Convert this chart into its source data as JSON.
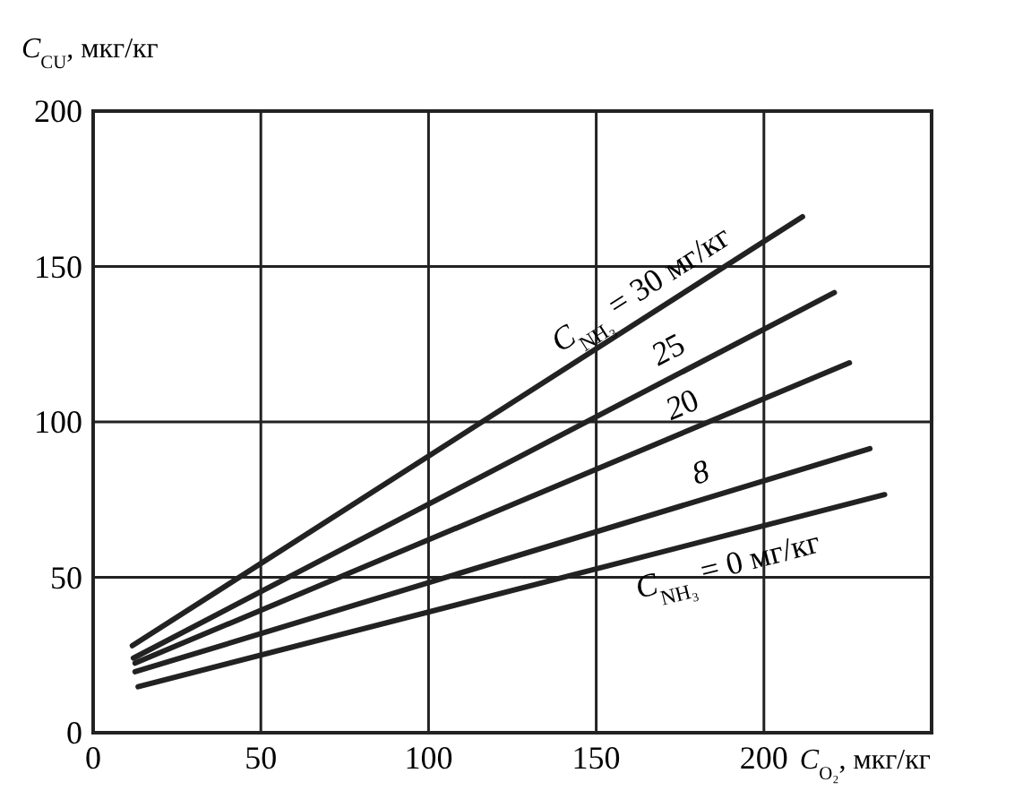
{
  "chart_data": {
    "type": "line",
    "xlabel": "C$_{O₂}$, мкг/кг",
    "ylabel": "C$_{CU}$, мкг/кг",
    "xlim": [
      0,
      250
    ],
    "ylim": [
      0,
      200
    ],
    "xticks": [
      0,
      50,
      100,
      150,
      200
    ],
    "yticks": [
      0,
      50,
      100,
      150,
      200
    ],
    "grid": true,
    "marker": "none",
    "line_style": "solid",
    "series": [
      {
        "name": "C$_{NH₃}$ = 30 мг/кг",
        "color": "#222222",
        "x": [
          11.7,
          211.5
        ],
        "values": [
          28,
          166
        ]
      },
      {
        "name": "25",
        "color": "#222222",
        "x": [
          12,
          221
        ],
        "values": [
          24,
          141.6
        ]
      },
      {
        "name": "20",
        "color": "#222222",
        "x": [
          12.5,
          225.5
        ],
        "values": [
          22.4,
          119
        ]
      },
      {
        "name": "8",
        "color": "#222222",
        "x": [
          12.5,
          231.6
        ],
        "values": [
          19.6,
          91.4
        ]
      },
      {
        "name": "C$_{NH₃}$ = 0 мг/кг",
        "color": "#222222",
        "x": [
          13.4,
          236
        ],
        "values": [
          14.8,
          76.6
        ]
      }
    ]
  }
}
